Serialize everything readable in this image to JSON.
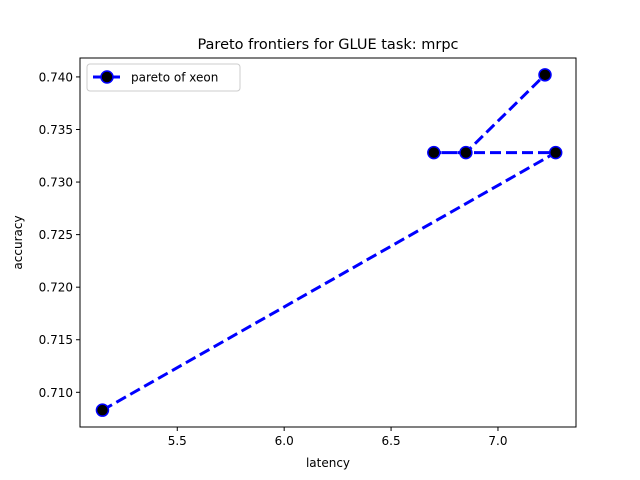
{
  "chart_data": {
    "type": "line",
    "title": "Pareto frontiers for GLUE task: mrpc",
    "xlabel": "latency",
    "ylabel": "accuracy",
    "xlim": [
      5.045,
      7.365
    ],
    "ylim": [
      0.7067,
      0.7418
    ],
    "xticks": [
      5.5,
      6.0,
      6.5,
      7.0
    ],
    "xtick_labels": [
      "5.5",
      "6.0",
      "6.5",
      "7.0"
    ],
    "yticks": [
      0.71,
      0.715,
      0.72,
      0.725,
      0.73,
      0.735,
      0.74
    ],
    "ytick_labels": [
      "0.710",
      "0.715",
      "0.720",
      "0.725",
      "0.730",
      "0.735",
      "0.740"
    ],
    "grid": false,
    "legend_position": "upper-left",
    "series": [
      {
        "name": "pareto of xeon",
        "x": [
          5.15,
          7.27,
          6.7,
          6.85,
          7.22
        ],
        "y": [
          0.7083,
          0.7328,
          0.7328,
          0.7328,
          0.7402
        ],
        "line_color": "#0000ff",
        "line_style": "dashed",
        "marker": "circle",
        "marker_face_color": "#000000",
        "marker_edge_color": "#0000ff"
      }
    ]
  }
}
